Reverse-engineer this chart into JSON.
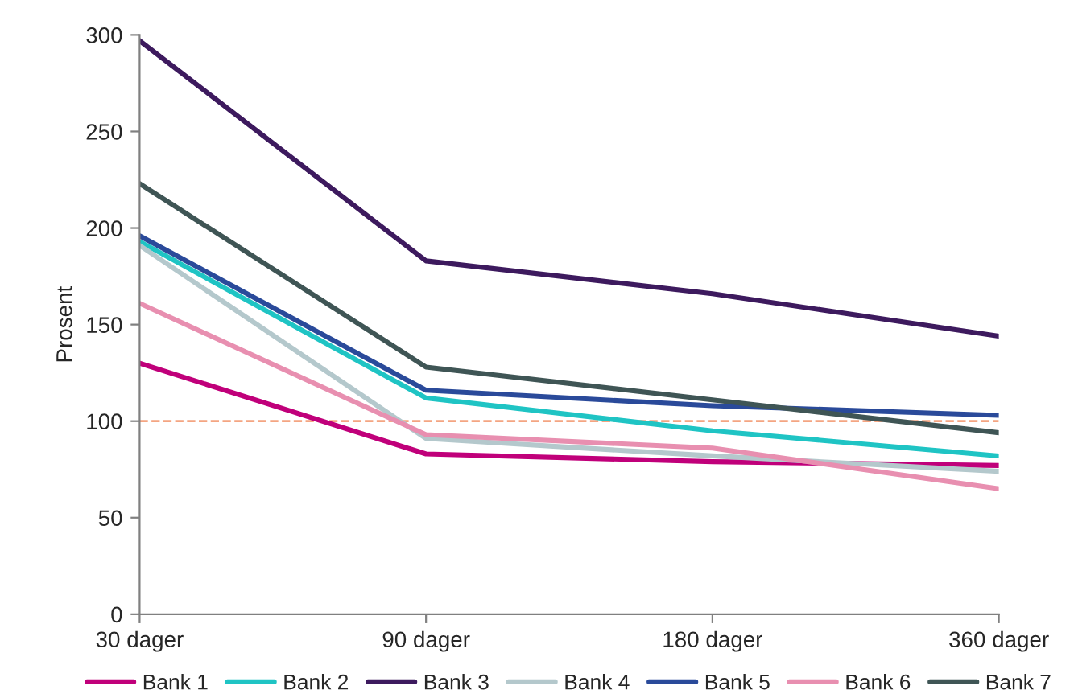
{
  "chart_data": {
    "type": "line",
    "ylabel": "Prosent",
    "categories": [
      "30 dager",
      "90 dager",
      "180 dager",
      "360 dager"
    ],
    "series": [
      {
        "name": "Bank 1",
        "color": "#c0007a",
        "values": [
          130,
          83,
          79,
          77
        ]
      },
      {
        "name": "Bank 2",
        "color": "#1fc4c4",
        "values": [
          193,
          112,
          95,
          82
        ]
      },
      {
        "name": "Bank 3",
        "color": "#3d1a5e",
        "values": [
          297,
          183,
          166,
          144
        ]
      },
      {
        "name": "Bank 4",
        "color": "#b4c8cc",
        "values": [
          191,
          91,
          82,
          74
        ]
      },
      {
        "name": "Bank 5",
        "color": "#2a4a9a",
        "values": [
          196,
          116,
          108,
          103
        ]
      },
      {
        "name": "Bank 6",
        "color": "#e88fb0",
        "values": [
          161,
          93,
          86,
          65
        ]
      },
      {
        "name": "Bank 7",
        "color": "#3f5555",
        "values": [
          223,
          128,
          111,
          94
        ]
      }
    ],
    "ylim": [
      0,
      300
    ],
    "yticks": [
      0,
      50,
      100,
      150,
      200,
      250,
      300
    ],
    "ref_lines": [
      {
        "axis": "y",
        "value": 100,
        "color": "#f4a582",
        "line_style": "dashed"
      }
    ],
    "grid": false,
    "legend": "bottom",
    "marker": "none",
    "line_style": "solid"
  }
}
